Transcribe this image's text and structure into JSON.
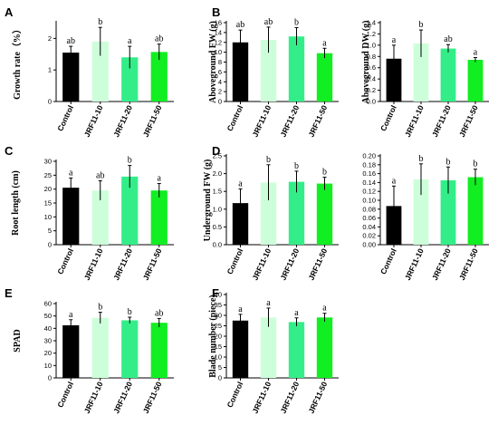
{
  "colors": [
    "#000000",
    "#ccffd9",
    "#33ee88",
    "#11ee22"
  ],
  "chart_data": [
    {
      "id": "A",
      "panel_letter": "A",
      "type": "bar",
      "categories": [
        "Control",
        "JRF11-10",
        "JRF11-20",
        "JRF11-50"
      ],
      "values": [
        1.55,
        1.9,
        1.4,
        1.57
      ],
      "errors": [
        0.2,
        0.45,
        0.35,
        0.25
      ],
      "significance": [
        "ab",
        "b",
        "a",
        "ab"
      ],
      "ylabel": "Growth rate（%）",
      "ylim": [
        0,
        2.5
      ],
      "yticks": [
        "0",
        "1",
        "2"
      ],
      "ytick_values": [
        0,
        1,
        2
      ]
    },
    {
      "id": "B1",
      "panel_letter": "B",
      "type": "bar",
      "categories": [
        "Control",
        "JRF11-10",
        "JRF11-20",
        "JRF11-50"
      ],
      "values": [
        12,
        12.5,
        13.2,
        9.8
      ],
      "errors": [
        2.5,
        2.6,
        1.8,
        1.0
      ],
      "significance": [
        "ab",
        "ab",
        "b",
        "a"
      ],
      "ylabel": "Aboveground FW (g)",
      "ylim": [
        0,
        16
      ],
      "yticks": [
        "0",
        "2",
        "4",
        "6",
        "8",
        "10",
        "12",
        "14",
        "16"
      ],
      "ytick_values": [
        0,
        2,
        4,
        6,
        8,
        10,
        12,
        14,
        16
      ]
    },
    {
      "id": "B2",
      "panel_letter": "",
      "type": "bar",
      "categories": [
        "Control",
        "JRF11-10",
        "JRF11-20",
        "JRF11-50"
      ],
      "values": [
        0.76,
        1.03,
        0.94,
        0.74
      ],
      "errors": [
        0.24,
        0.24,
        0.07,
        0.04
      ],
      "significance": [
        "a",
        "b",
        "ab",
        "a"
      ],
      "ylabel": "Aboveground DW (g)",
      "ylim": [
        0,
        1.4
      ],
      "yticks": [
        "0.0",
        "0.2",
        "0.4",
        "0.6",
        "0.8",
        "1.0",
        "1.2",
        "1.4"
      ],
      "ytick_values": [
        0,
        0.2,
        0.4,
        0.6,
        0.8,
        1.0,
        1.2,
        1.4
      ]
    },
    {
      "id": "C",
      "panel_letter": "C",
      "type": "bar",
      "categories": [
        "Control",
        "JRF11-10",
        "JRF11-20",
        "JRF11-50"
      ],
      "values": [
        20.5,
        19.5,
        24.5,
        19.5
      ],
      "errors": [
        3.5,
        3.5,
        4.0,
        2.5
      ],
      "significance": [
        "a",
        "ab",
        "b",
        "a"
      ],
      "ylabel": "Root length (cm)",
      "ylim": [
        0,
        30
      ],
      "yticks": [
        "0",
        "5",
        "10",
        "15",
        "20",
        "25",
        "30"
      ],
      "ytick_values": [
        0,
        5,
        10,
        15,
        20,
        25,
        30
      ]
    },
    {
      "id": "D1",
      "panel_letter": "D",
      "type": "bar",
      "categories": [
        "Control",
        "JRF11-10",
        "JRF11-20",
        "JRF11-50"
      ],
      "values": [
        1.17,
        1.75,
        1.77,
        1.72
      ],
      "errors": [
        0.4,
        0.5,
        0.3,
        0.18
      ],
      "significance": [
        "a",
        "b",
        "b",
        "b"
      ],
      "ylabel": "Underground FW (g)",
      "ylim": [
        0,
        2.5
      ],
      "yticks": [
        "0.0",
        "0.5",
        "1.0",
        "1.5",
        "2.0",
        "2.5"
      ],
      "ytick_values": [
        0,
        0.5,
        1.0,
        1.5,
        2.0,
        2.5
      ]
    },
    {
      "id": "D2",
      "panel_letter": "",
      "type": "bar",
      "categories": [
        "Control",
        "JRF11-10",
        "JRF11-20",
        "JRF11-50"
      ],
      "values": [
        0.087,
        0.147,
        0.145,
        0.152
      ],
      "errors": [
        0.045,
        0.035,
        0.03,
        0.018
      ],
      "significance": [
        "a",
        "b",
        "b",
        "b"
      ],
      "ylabel": "",
      "ylim": [
        0,
        0.2
      ],
      "yticks": [
        "0.00",
        "0.02",
        "0.04",
        "0.06",
        "0.08",
        "0.10",
        "0.12",
        "0.14",
        "0.16",
        "0.18",
        "0.20"
      ],
      "ytick_values": [
        0,
        0.02,
        0.04,
        0.06,
        0.08,
        0.1,
        0.12,
        0.14,
        0.16,
        0.18,
        0.2
      ]
    },
    {
      "id": "E",
      "panel_letter": "E",
      "type": "bar",
      "categories": [
        "Control",
        "JRF11-10",
        "JRF11-20",
        "JRF11-50"
      ],
      "values": [
        42.5,
        48.5,
        46.5,
        44.5
      ],
      "errors": [
        4.5,
        4.5,
        2.5,
        3.5
      ],
      "significance": [
        "a",
        "b",
        "b",
        "ab"
      ],
      "ylabel": "SPAD",
      "ylim": [
        0,
        60
      ],
      "yticks": [
        "0",
        "10",
        "20",
        "30",
        "40",
        "50",
        "60"
      ],
      "ytick_values": [
        0,
        10,
        20,
        30,
        40,
        50,
        60
      ]
    },
    {
      "id": "F",
      "panel_letter": "F",
      "type": "bar",
      "categories": [
        "Control",
        "JRF11-10",
        "JRF11-20",
        "JRF11-50"
      ],
      "values": [
        27.5,
        29,
        26.8,
        29
      ],
      "errors": [
        3.0,
        4.5,
        2.0,
        2.0
      ],
      "significance": [
        "a",
        "a",
        "a",
        "a"
      ],
      "ylabel": "Blade number (piece)",
      "ylim": [
        0,
        40
      ],
      "yticks": [
        "0",
        "5",
        "10",
        "15",
        "20",
        "25",
        "30",
        "35",
        "40"
      ],
      "ytick_values": [
        0,
        5,
        10,
        15,
        20,
        25,
        30,
        35,
        40
      ]
    }
  ]
}
